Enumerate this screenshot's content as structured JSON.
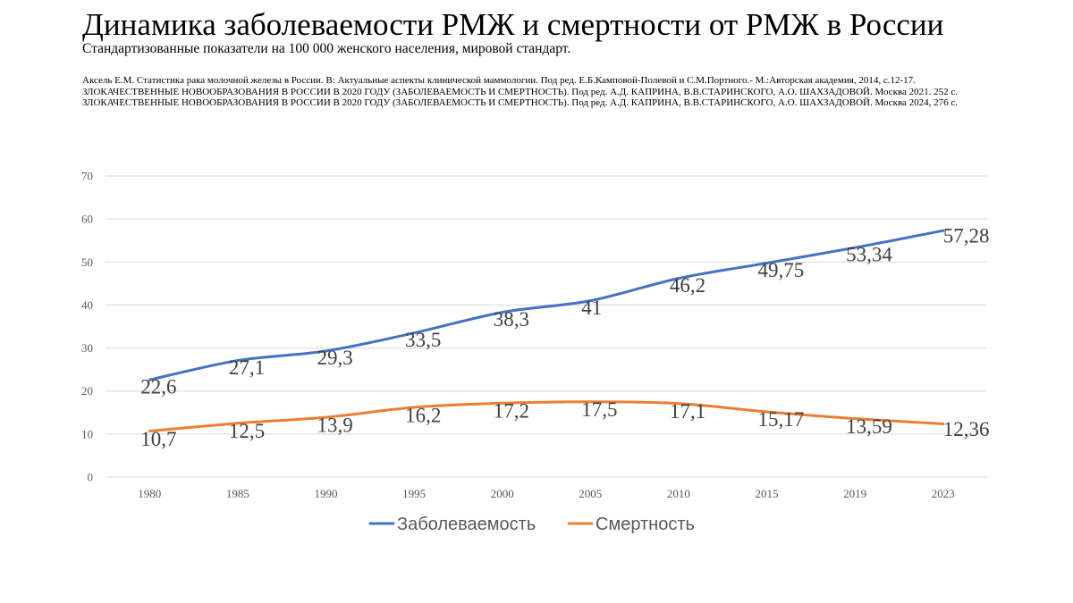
{
  "header": {
    "title": "Динамика заболеваемости РМЖ и смертности от РМЖ в России",
    "subtitle": "Стандартизованные показатели на 100 000 женского населения, мировой стандарт."
  },
  "sources": [
    "Аксель Е.М. Статистика рака молочной железы в России. В: Актуальные аспекты клинической маммологии. Под ред. Е.Б.Камповой-Полевой и С.М.Портного.- М.:Авторская академия, 2014, с.12-17.",
    "ЗЛОКАЧЕСТВЕННЫЕ НОВООБРАЗОВАНИЯ В РОССИИ В 2020 ГОДУ (ЗАБОЛЕВАЕМОСТЬ И СМЕРТНОСТЬ). Под ред. А.Д. КАПРИНА, В.В.СТАРИНСКОГО, А.О. ШАХЗАДОВОЙ. Москва 2021. 252 с.",
    "ЗЛОКАЧЕСТВЕННЫЕ НОВООБРАЗОВАНИЯ В РОССИИ В 2020 ГОДУ (ЗАБОЛЕВАЕМОСТЬ И СМЕРТНОСТЬ). Под ред. А.Д. КАПРИНА, В.В.СТАРИНСКОГО, А.О. ШАХЗАДОВОЙ. Москва 2024, 276 с."
  ],
  "chart_data": {
    "type": "line",
    "title": "Динамика заболеваемости РМЖ и смертности от РМЖ в России",
    "xlabel": "",
    "ylabel": "",
    "categories": [
      "1980",
      "1985",
      "1990",
      "1995",
      "2000",
      "2005",
      "2010",
      "2015",
      "2019",
      "2023"
    ],
    "ylim": [
      0,
      70
    ],
    "yticks": [
      0,
      10,
      20,
      30,
      40,
      50,
      60,
      70
    ],
    "grid": true,
    "legend_position": "bottom",
    "series": [
      {
        "name": "Заболеваемость",
        "color": "#4472C4",
        "values": [
          22.6,
          27.1,
          29.3,
          33.5,
          38.3,
          41,
          46.2,
          49.75,
          53.34,
          57.28
        ],
        "labels": [
          "22,6",
          "27,1",
          "29,3",
          "33,5",
          "38,3",
          "41",
          "46,2",
          "49,75",
          "53,34",
          "57,28"
        ]
      },
      {
        "name": "Смертность",
        "color": "#ED7D31",
        "values": [
          10.7,
          12.5,
          13.9,
          16.2,
          17.2,
          17.5,
          17.1,
          15.17,
          13.59,
          12.36
        ],
        "labels": [
          "10,7",
          "12,5",
          "13,9",
          "16,2",
          "17,2",
          "17,5",
          "17,1",
          "15,17",
          "13,59",
          "12,36"
        ]
      }
    ]
  }
}
